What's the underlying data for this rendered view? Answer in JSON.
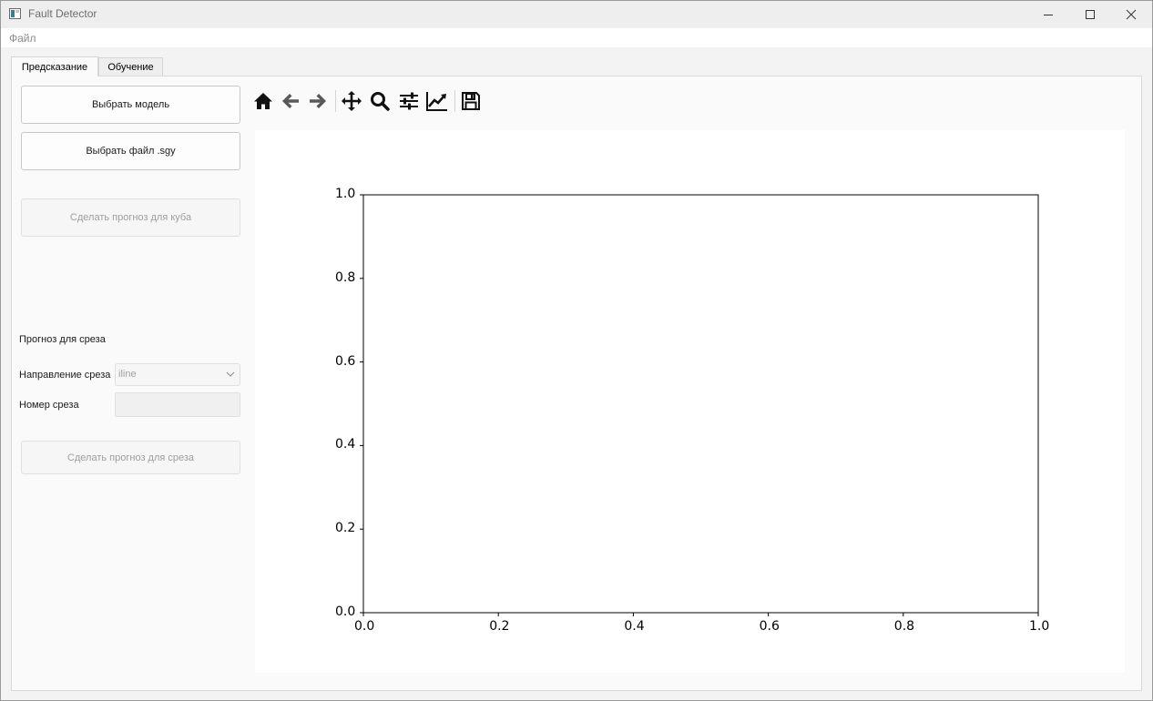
{
  "window": {
    "title": "Fault Detector"
  },
  "menu": {
    "file": "Файл"
  },
  "tabs": [
    {
      "label": "Предсказание",
      "active": true
    },
    {
      "label": "Обучение",
      "active": false
    }
  ],
  "left_panel": {
    "select_model": "Выбрать модель",
    "select_file": "Выбрать файл .sgy",
    "predict_cube": "Сделать прогноз для куба",
    "slice_section_title": "Прогноз для среза",
    "slice_direction_label": "Направление среза",
    "slice_direction_value": "iline",
    "slice_number_label": "Номер среза",
    "predict_slice": "Сделать прогноз для среза"
  },
  "toolbar": {
    "icons": [
      "home-icon",
      "back-icon",
      "forward-icon",
      "pan-icon",
      "zoom-icon",
      "configure-subplots-icon",
      "edit-axis-icon",
      "save-icon"
    ]
  },
  "chart_data": {
    "type": "line",
    "series": [],
    "xlim": [
      0.0,
      1.0
    ],
    "ylim": [
      0.0,
      1.0
    ],
    "xticks": [
      "0.0",
      "0.2",
      "0.4",
      "0.6",
      "0.8",
      "1.0"
    ],
    "yticks": [
      "0.0",
      "0.2",
      "0.4",
      "0.6",
      "0.8",
      "1.0"
    ],
    "grid": false,
    "title": "",
    "xlabel": "",
    "ylabel": ""
  }
}
